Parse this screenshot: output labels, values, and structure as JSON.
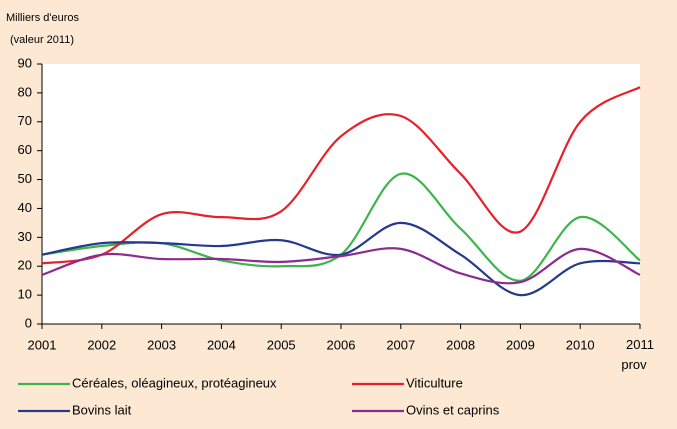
{
  "chart_data": {
    "type": "line",
    "y_label": [
      "Milliers d'euros",
      "(valeur 2011)"
    ],
    "categories": [
      "2001",
      "2002",
      "2003",
      "2004",
      "2005",
      "2006",
      "2007",
      "2008",
      "2009",
      "2010",
      "2011 prov"
    ],
    "series": [
      {
        "name": "Céréales, oléagineux, protéagineux",
        "color": "#3cb54a",
        "values": [
          24,
          27,
          28,
          22,
          20,
          24,
          52,
          33,
          15,
          37,
          22
        ]
      },
      {
        "name": "Viticulture",
        "color": "#e8202a",
        "values": [
          21,
          24,
          38,
          37,
          39,
          65,
          72,
          52,
          32,
          70,
          82
        ]
      },
      {
        "name": "Bovins lait",
        "color": "#253a8e",
        "values": [
          24,
          28,
          28,
          27,
          29,
          24,
          35,
          24,
          10,
          21,
          21
        ]
      },
      {
        "name": "Ovins et caprins",
        "color": "#8b2c91",
        "values": [
          17,
          24,
          22.5,
          22.5,
          21.5,
          23.5,
          26,
          17.5,
          14.5,
          26,
          17
        ]
      }
    ],
    "ylim": [
      0,
      90
    ],
    "yticks": [
      0,
      10,
      20,
      30,
      40,
      50,
      60,
      70,
      80,
      90
    ],
    "grid": false
  }
}
